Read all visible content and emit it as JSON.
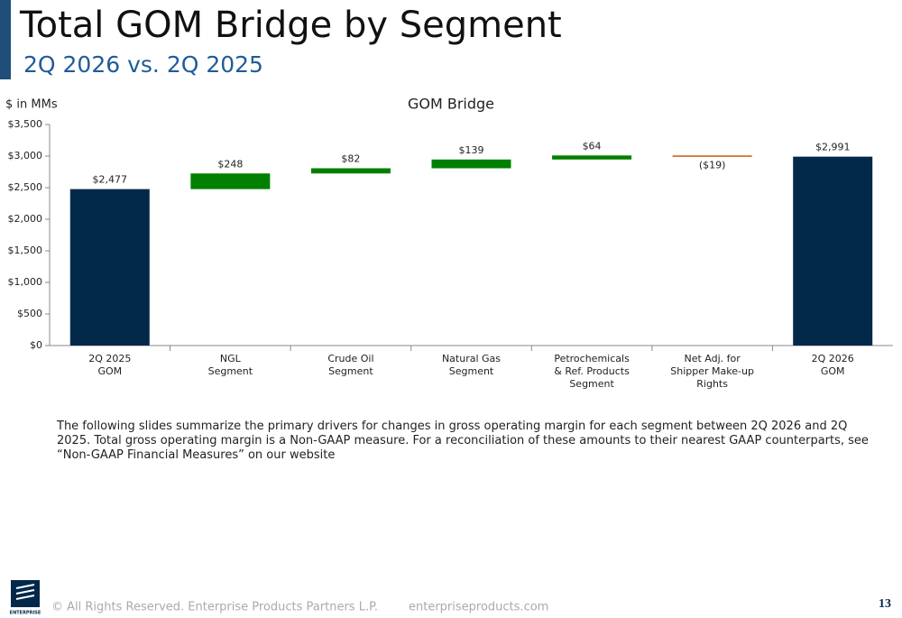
{
  "slide": {
    "title": "Total GOM Bridge by Segment",
    "subtitle": "2Q 2026 vs. 2Q 2025",
    "body": "The following slides summarize the primary drivers for changes in gross operating margin for each segment between 2Q 2026 and 2Q 2025. Total gross operating margin is a Non-GAAP measure. For a reconciliation of these amounts to their nearest GAAP counterparts, see “Non-GAAP Financial Measures” on our website",
    "logo_text": "ENTERPRISE",
    "copyright": "© All Rights Reserved. Enterprise Products Partners L.P.",
    "website": "enterpriseproducts.com",
    "page_number": "13"
  },
  "chart_data": {
    "type": "waterfall",
    "title": "GOM Bridge",
    "y_label": "$ in MMs",
    "categories": [
      [
        "2Q 2025",
        "GOM"
      ],
      [
        "NGL",
        "Segment"
      ],
      [
        "Crude Oil",
        "Segment"
      ],
      [
        "Natural Gas",
        "Segment"
      ],
      [
        "Petrochemicals",
        "& Ref. Products",
        "Segment"
      ],
      [
        "Net Adj. for",
        "Shipper Make-up",
        "Rights"
      ],
      [
        "2Q 2026",
        "GOM"
      ]
    ],
    "values": [
      2477,
      248,
      82,
      139,
      64,
      -19,
      2991
    ],
    "value_labels": [
      "$2,477",
      "$248",
      "$82",
      "$139",
      "$64",
      "($19)",
      "$2,991"
    ],
    "measure": [
      "absolute",
      "relative",
      "relative",
      "relative",
      "relative",
      "relative",
      "absolute"
    ],
    "colors": {
      "total": "#02284a",
      "increase": "#008000",
      "decrease": "#c55a11"
    },
    "ylim": [
      0,
      3500
    ],
    "yticks": [
      {
        "value": 0,
        "label": "$0"
      },
      {
        "value": 500,
        "label": "$500"
      },
      {
        "value": 1000,
        "label": "$1,000"
      },
      {
        "value": 1500,
        "label": "$1,500"
      },
      {
        "value": 2000,
        "label": "$2,000"
      },
      {
        "value": 2500,
        "label": "$2,500"
      },
      {
        "value": 3000,
        "label": "$3,000"
      },
      {
        "value": 3500,
        "label": "$3,500"
      }
    ]
  }
}
